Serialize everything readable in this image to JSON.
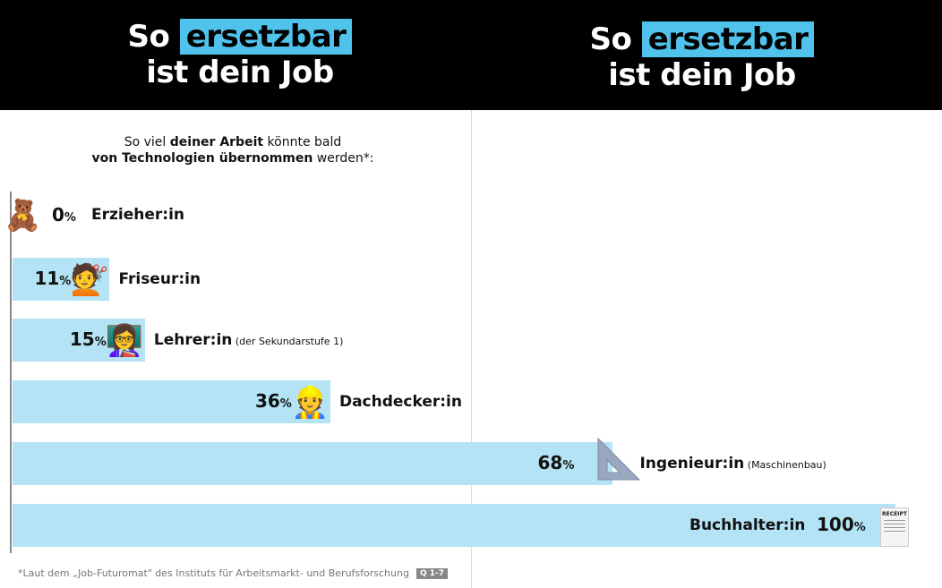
{
  "header": {
    "title_left": {
      "pre": "So",
      "highlight": "ersetzbar",
      "line2": "ist dein Job"
    },
    "title_right": {
      "pre": "So",
      "highlight": "ersetzbar",
      "line2": "ist dein Job"
    }
  },
  "subtitle": {
    "part1": "So viel ",
    "bold1": "deiner Arbeit",
    "part2": " könnte bald",
    "bold2": "von Technologien übernommen",
    "part3": " werden*:"
  },
  "colors": {
    "bar": "#b3e3f5",
    "highlight": "#4fc3ec",
    "header_bg": "#000000"
  },
  "chart_data": {
    "type": "bar",
    "orientation": "horizontal",
    "title": "So viel deiner Arbeit könnte bald von Technologien übernommen werden*:",
    "xlim": [
      0,
      100
    ],
    "unit": "%",
    "categories": [
      "Erzieher:in",
      "Friseur:in",
      "Lehrer:in",
      "Dachdecker:in",
      "Ingenieur:in",
      "Buchhalter:in"
    ],
    "notes": [
      "",
      "",
      "(der Sekundarstufe 1)",
      "",
      "(Maschinenbau)",
      ""
    ],
    "icons": [
      "teddy-bear-icon",
      "hairdresser-icon",
      "teacher-icon",
      "construction-worker-icon",
      "set-square-icon",
      "receipt-icon"
    ],
    "values": [
      0,
      11,
      15,
      36,
      68,
      100
    ],
    "value_labels": [
      "0",
      "11",
      "15",
      "36",
      "68",
      "100"
    ],
    "pct_symbol": "%"
  },
  "receipt_text": "RECEIPT",
  "footnote": {
    "text": "*Laut dem „Job-Futuromat\" des Instituts für Arbeitsmarkt- und Berufsforschung",
    "badge": "Q 1-7"
  }
}
